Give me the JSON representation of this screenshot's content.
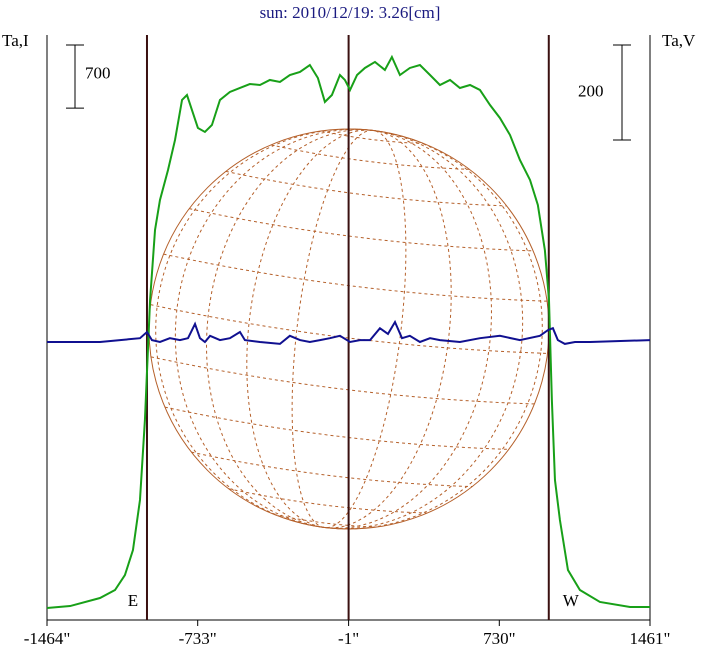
{
  "chart_data": {
    "type": "line",
    "title": "sun: 2010/12/19: 3.26[cm]",
    "y_label": "Ta,I",
    "y2_label": "Ta,V",
    "xlim": [
      -1464,
      1461
    ],
    "xticks": [
      {
        "value": -1464,
        "label": "-1464\""
      },
      {
        "value": -733,
        "label": "-733\""
      },
      {
        "value": -1,
        "label": "-1\""
      },
      {
        "value": 730,
        "label": "730\""
      },
      {
        "value": 1461,
        "label": "1461\""
      }
    ],
    "ylim": [
      -133,
      6360
    ],
    "y2lim": [
      -585,
      646
    ],
    "scale_bars": [
      {
        "value": 700,
        "axis": "y"
      },
      {
        "value": 200,
        "axis": "y2"
      }
    ],
    "vlines": [
      -979,
      -1,
      970
    ],
    "limb_labels": [
      {
        "x": -979,
        "label": "E"
      },
      {
        "x": 970,
        "label": "W"
      }
    ],
    "series": [
      {
        "name": "I",
        "color": "#18a018",
        "axis": "y",
        "x": [
          -1464,
          -1352,
          -1207,
          -1134,
          -1086,
          -1047,
          -1013,
          -989,
          -964,
          -940,
          -916,
          -877,
          -843,
          -809,
          -785,
          -761,
          -732,
          -698,
          -664,
          -625,
          -577,
          -528,
          -480,
          -431,
          -383,
          -334,
          -286,
          -237,
          -189,
          -150,
          -116,
          -82,
          -43,
          -19,
          6,
          40,
          78,
          127,
          175,
          209,
          248,
          296,
          345,
          394,
          442,
          491,
          539,
          588,
          636,
          685,
          733,
          782,
          830,
          879,
          917,
          951,
          971,
          985,
          1000,
          1024,
          1063,
          1121,
          1218,
          1364,
          1461
        ],
        "values": [
          0,
          22,
          111,
          200,
          366,
          644,
          1199,
          2087,
          3419,
          4196,
          4529,
          4862,
          5195,
          5639,
          5694,
          5528,
          5328,
          5284,
          5361,
          5639,
          5728,
          5772,
          5816,
          5805,
          5861,
          5839,
          5916,
          5950,
          6027,
          5883,
          5617,
          5694,
          5916,
          5861,
          5750,
          5916,
          5994,
          6061,
          5972,
          6116,
          5916,
          5994,
          6027,
          5916,
          5805,
          5861,
          5772,
          5805,
          5750,
          5583,
          5439,
          5250,
          4973,
          4751,
          4473,
          3974,
          3419,
          2309,
          1421,
          977,
          422,
          200,
          67,
          11,
          11
        ]
      },
      {
        "name": "V",
        "color": "#101090",
        "axis": "y2",
        "x": [
          -1464,
          -1207,
          -1110,
          -1013,
          -979,
          -955,
          -916,
          -868,
          -819,
          -780,
          -746,
          -722,
          -698,
          -673,
          -625,
          -577,
          -528,
          -504,
          -431,
          -334,
          -286,
          -237,
          -189,
          -140,
          -92,
          -43,
          6,
          54,
          103,
          151,
          190,
          224,
          258,
          296,
          345,
          394,
          442,
          539,
          636,
          733,
          830,
          927,
          966,
          990,
          1014,
          1048,
          1097,
          1170,
          1461
        ],
        "values": [
          0,
          0,
          4,
          8,
          21,
          4,
          0,
          8,
          4,
          8,
          38,
          8,
          0,
          13,
          4,
          8,
          21,
          4,
          0,
          -4,
          13,
          4,
          0,
          4,
          8,
          13,
          0,
          4,
          4,
          29,
          17,
          42,
          8,
          13,
          0,
          8,
          4,
          0,
          8,
          13,
          4,
          13,
          25,
          29,
          4,
          -4,
          0,
          0,
          4
        ]
      }
    ]
  }
}
